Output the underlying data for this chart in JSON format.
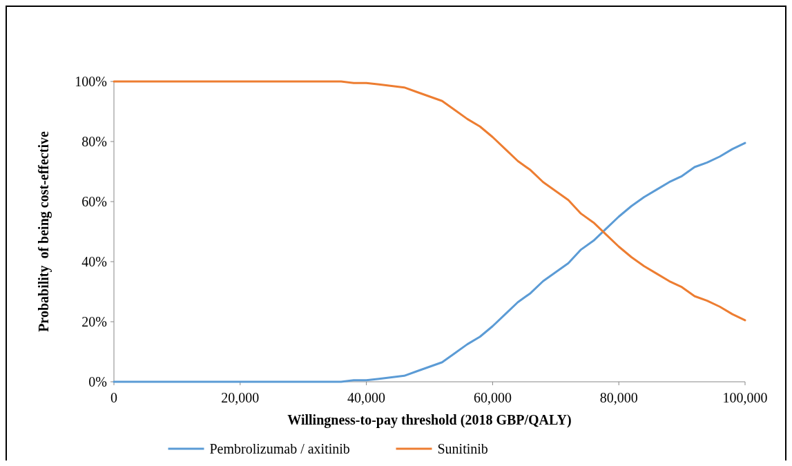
{
  "chart_data": {
    "type": "line",
    "xlabel": "Willingness-to-pay threshold (2018 GBP/QALY)",
    "ylabel": "Probability  of being cost-effective",
    "x": [
      0,
      2000,
      4000,
      6000,
      8000,
      10000,
      12000,
      14000,
      16000,
      18000,
      20000,
      22000,
      24000,
      26000,
      28000,
      30000,
      32000,
      34000,
      36000,
      38000,
      40000,
      42000,
      44000,
      46000,
      48000,
      50000,
      52000,
      54000,
      56000,
      58000,
      60000,
      62000,
      64000,
      66000,
      68000,
      70000,
      72000,
      74000,
      76000,
      78000,
      80000,
      82000,
      84000,
      86000,
      88000,
      90000,
      92000,
      94000,
      96000,
      98000,
      100000
    ],
    "series": [
      {
        "name": "Pembrolizumab / axitinib",
        "color": "#5b9bd5",
        "values": [
          0,
          0,
          0,
          0,
          0,
          0,
          0,
          0,
          0,
          0,
          0,
          0,
          0,
          0,
          0,
          0,
          0,
          0,
          0,
          0.5,
          0.5,
          1,
          1.5,
          2,
          3.5,
          5,
          6.5,
          9.5,
          12.5,
          15,
          18.5,
          22.5,
          26.5,
          29.5,
          33.5,
          36.5,
          39.5,
          44,
          47,
          51,
          55,
          58.5,
          61.5,
          64,
          66.5,
          68.5,
          71.5,
          73,
          75,
          77.5,
          79.5
        ]
      },
      {
        "name": "Sunitinib",
        "color": "#ed7d31",
        "values": [
          100,
          100,
          100,
          100,
          100,
          100,
          100,
          100,
          100,
          100,
          100,
          100,
          100,
          100,
          100,
          100,
          100,
          100,
          100,
          99.5,
          99.5,
          99,
          98.5,
          98,
          96.5,
          95,
          93.5,
          90.5,
          87.5,
          85,
          81.5,
          77.5,
          73.5,
          70.5,
          66.5,
          63.5,
          60.5,
          56,
          53,
          49,
          45,
          41.5,
          38.5,
          36,
          33.5,
          31.5,
          28.5,
          27,
          25,
          22.5,
          20.5
        ]
      }
    ],
    "xlim": [
      0,
      100000
    ],
    "xticks": [
      {
        "value": 0,
        "label": "0"
      },
      {
        "value": 20000,
        "label": "20,000"
      },
      {
        "value": 40000,
        "label": "40,000"
      },
      {
        "value": 60000,
        "label": "60,000"
      },
      {
        "value": 80000,
        "label": "80,000"
      },
      {
        "value": 100000,
        "label": "100,000"
      }
    ],
    "ylim": [
      0,
      100
    ],
    "yticks": [
      {
        "value": 0,
        "label": "0%"
      },
      {
        "value": 20,
        "label": "20%"
      },
      {
        "value": 40,
        "label": "40%"
      },
      {
        "value": 60,
        "label": "60%"
      },
      {
        "value": 80,
        "label": "80%"
      },
      {
        "value": 100,
        "label": "100%"
      }
    ],
    "grid": false,
    "legend": "bottom",
    "marker": "none",
    "line_style": "solid"
  }
}
